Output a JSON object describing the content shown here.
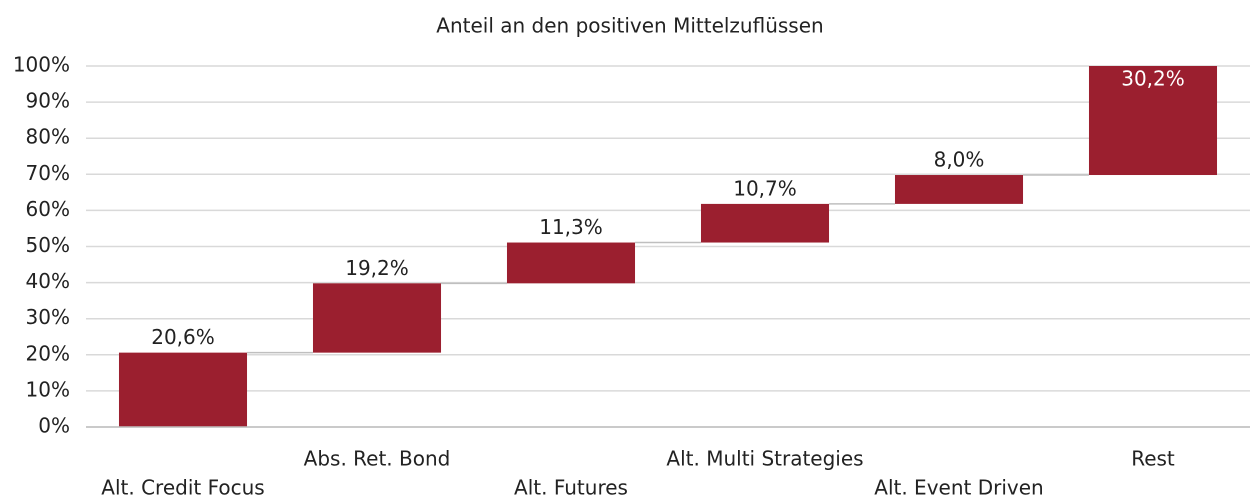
{
  "chart_data": {
    "type": "waterfall",
    "title": "Anteil an den positiven Mittelzuflüssen",
    "categories": [
      "Alt. Credit Focus",
      "Abs. Ret. Bond",
      "Alt. Futures",
      "Alt. Multi Strategies",
      "Alt. Event Driven",
      "Rest"
    ],
    "values": [
      20.6,
      19.2,
      11.3,
      10.7,
      8.0,
      30.2
    ],
    "value_labels": [
      "20,6%",
      "19,2%",
      "11,3%",
      "10,7%",
      "8,0%",
      "30,2%"
    ],
    "color": "#9b1f2f",
    "ylim": [
      0,
      100
    ],
    "yticks": [
      {
        "value": 0,
        "label": "0%"
      },
      {
        "value": 10,
        "label": "10%"
      },
      {
        "value": 20,
        "label": "20%"
      },
      {
        "value": 30,
        "label": "30%"
      },
      {
        "value": 40,
        "label": "40%"
      },
      {
        "value": 50,
        "label": "50%"
      },
      {
        "value": 60,
        "label": "60%"
      },
      {
        "value": 70,
        "label": "70%"
      },
      {
        "value": 80,
        "label": "80%"
      },
      {
        "value": 90,
        "label": "90%"
      },
      {
        "value": 100,
        "label": "100%"
      }
    ],
    "grid": true
  }
}
